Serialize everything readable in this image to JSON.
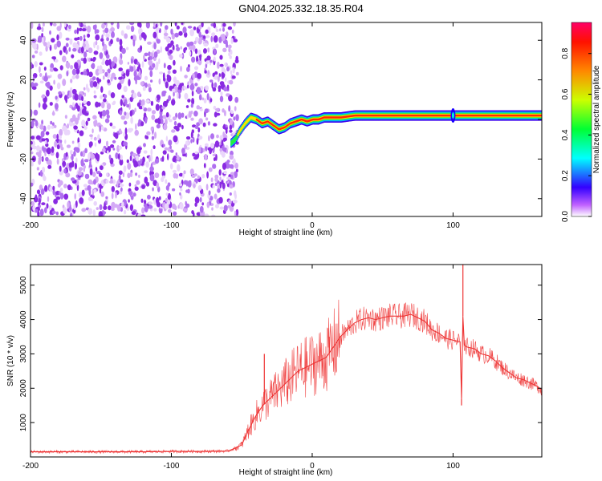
{
  "title": "GN04.2025.332.18.35.R04",
  "chart_data": [
    {
      "type": "heatmap",
      "xlabel": "Height of straight line (km)",
      "ylabel": "Frequency (Hz)",
      "xlim": [
        -200,
        163
      ],
      "ylim": [
        -49,
        49
      ],
      "xticks": [
        -200,
        -100,
        0,
        100
      ],
      "yticks": [
        -40,
        -20,
        0,
        20,
        40
      ],
      "colorbar": {
        "label": "Normalized spectral amplitude",
        "range": [
          0,
          1
        ],
        "ticks": [
          "0.0",
          "0.2",
          "0.4",
          "0.6",
          "0.8"
        ]
      },
      "noise_region_x": [
        -200,
        -53
      ],
      "noise_region_amplitude": 0.15,
      "ridge": {
        "x": [
          -58,
          -55,
          -52,
          -48,
          -44,
          -40,
          -36,
          -32,
          -28,
          -24,
          -20,
          -16,
          -12,
          -8,
          -4,
          0,
          4,
          8,
          12,
          20,
          30,
          50,
          80,
          100,
          120,
          163
        ],
        "freq": [
          -12,
          -10,
          -6,
          -2,
          1,
          0,
          -2,
          -1,
          -3,
          -5,
          -4,
          -2,
          -1,
          0,
          -1,
          0,
          0,
          1,
          1,
          1,
          2,
          2,
          2,
          2,
          2,
          2
        ],
        "amplitude": [
          0.4,
          0.5,
          0.6,
          0.6,
          0.7,
          0.75,
          0.8,
          0.8,
          0.8,
          0.85,
          0.85,
          0.85,
          0.9,
          0.9,
          0.9,
          0.9,
          0.95,
          0.95,
          1.0,
          1.0,
          1.0,
          1.0,
          1.0,
          1.0,
          1.0,
          1.0
        ]
      }
    },
    {
      "type": "line",
      "xlabel": "Height of straight line (km)",
      "ylabel": "SNR (10 * v/v)",
      "xlim": [
        -200,
        163
      ],
      "ylim": [
        0,
        5600
      ],
      "xticks": [
        -200,
        -100,
        0,
        100
      ],
      "yticks": [
        1000,
        2000,
        3000,
        4000,
        5000
      ],
      "series": [
        {
          "name": "SNR",
          "color": "#ee3333",
          "x": [
            -200,
            -180,
            -160,
            -140,
            -120,
            -100,
            -80,
            -60,
            -55,
            -50,
            -45,
            -40,
            -35,
            -30,
            -25,
            -20,
            -15,
            -10,
            -5,
            0,
            5,
            10,
            15,
            20,
            25,
            30,
            35,
            40,
            45,
            50,
            55,
            60,
            65,
            70,
            75,
            80,
            85,
            90,
            95,
            100,
            105,
            106,
            107,
            108,
            110,
            115,
            120,
            125,
            130,
            135,
            140,
            145,
            150,
            155,
            160,
            163
          ],
          "y": [
            150,
            150,
            150,
            150,
            150,
            160,
            160,
            170,
            250,
            350,
            800,
            1200,
            1500,
            1700,
            1900,
            2100,
            2300,
            2500,
            2600,
            2700,
            2800,
            2900,
            3200,
            3500,
            3700,
            3900,
            4000,
            4050,
            4000,
            4050,
            4100,
            4100,
            4100,
            4150,
            4050,
            3950,
            3700,
            3600,
            3450,
            3400,
            3350,
            1700,
            4100,
            3250,
            3200,
            3150,
            3000,
            2950,
            2800,
            2600,
            2450,
            2300,
            2250,
            2150,
            2050,
            1950
          ],
          "spikes": [
            {
              "x": -34,
              "y": 3000
            },
            {
              "x": 12,
              "y": 3500
            },
            {
              "x": 106,
              "y": 1500
            },
            {
              "x": 107,
              "y": 5600
            }
          ]
        }
      ]
    }
  ]
}
